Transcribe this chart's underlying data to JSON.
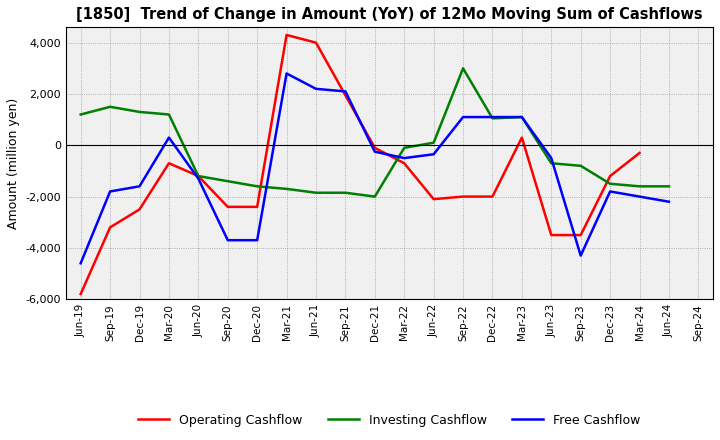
{
  "title": "[1850]  Trend of Change in Amount (YoY) of 12Mo Moving Sum of Cashflows",
  "ylabel": "Amount (million yen)",
  "labels": [
    "Jun-19",
    "Sep-19",
    "Dec-19",
    "Mar-20",
    "Jun-20",
    "Sep-20",
    "Dec-20",
    "Mar-21",
    "Jun-21",
    "Sep-21",
    "Dec-21",
    "Mar-22",
    "Jun-22",
    "Sep-22",
    "Dec-22",
    "Mar-23",
    "Jun-23",
    "Sep-23",
    "Dec-23",
    "Mar-24",
    "Jun-24",
    "Sep-24"
  ],
  "operating": [
    -5800,
    -3200,
    -2500,
    -700,
    -1200,
    -2400,
    -2400,
    4300,
    4000,
    1950,
    -100,
    -700,
    -2100,
    -2000,
    -2000,
    300,
    -3500,
    -3500,
    -1200,
    -300,
    null,
    null
  ],
  "investing": [
    1200,
    1500,
    1300,
    1200,
    -1200,
    -1400,
    -1600,
    -1700,
    -1850,
    -1850,
    -2000,
    -100,
    100,
    3000,
    1050,
    1100,
    -700,
    -800,
    -1500,
    -1600,
    -1600,
    null
  ],
  "free": [
    -4600,
    -1800,
    -1600,
    300,
    -1300,
    -3700,
    -3700,
    2800,
    2200,
    2100,
    -250,
    -500,
    -350,
    1100,
    1100,
    1100,
    -500,
    -4300,
    -1800,
    -2000,
    -2200,
    null
  ],
  "operating_color": "#ff0000",
  "investing_color": "#008000",
  "free_color": "#0000ff",
  "ylim": [
    -6000,
    4600
  ],
  "yticks": [
    -6000,
    -4000,
    -2000,
    0,
    2000,
    4000
  ],
  "bg_color": "#ffffff",
  "plot_bg_color": "#f0f0f0",
  "grid_color": "#999999",
  "legend_labels": [
    "Operating Cashflow",
    "Investing Cashflow",
    "Free Cashflow"
  ]
}
